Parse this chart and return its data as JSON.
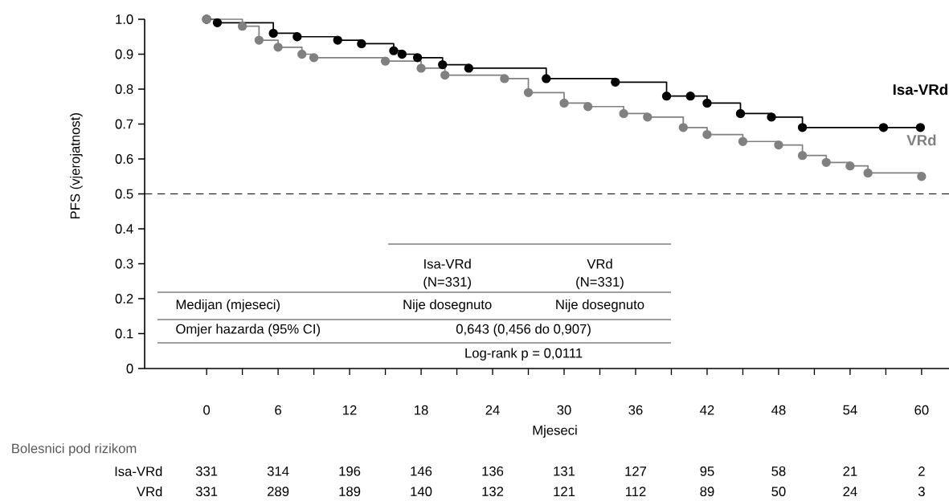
{
  "chart_data": {
    "type": "step",
    "xlabel": "Mjeseci",
    "ylabel": "PFS (vjerojatnost)",
    "xlim": [
      -5.2,
      62.3
    ],
    "ylim": [
      0,
      1.0
    ],
    "xticks": [
      0,
      {
        "value": 3,
        "label": null
      },
      6,
      {
        "value": 9,
        "label": null
      },
      12,
      {
        "value": 15,
        "label": null
      },
      18,
      {
        "value": 21,
        "label": null
      },
      24,
      {
        "value": 27,
        "label": null
      },
      30,
      {
        "value": 33,
        "label": null
      },
      36,
      {
        "value": 39,
        "label": null
      },
      42,
      {
        "value": 45,
        "label": null
      },
      48,
      {
        "value": 51,
        "label": null
      },
      54,
      {
        "value": 57,
        "label": null
      },
      60
    ],
    "yticks": [
      0,
      0.1,
      0.2,
      0.3,
      0.4,
      0.5,
      0.6,
      0.7,
      0.8,
      0.9,
      {
        "value": 1.0,
        "label": "1.0"
      }
    ],
    "marker": "circle",
    "line_style": "solid",
    "grid": false,
    "series": [
      {
        "name": "Isa-VRd",
        "color": "#000000",
        "x": [
          0,
          0.9,
          5.6,
          7.6,
          11,
          13,
          15.7,
          16.4,
          17.7,
          19.8,
          22,
          28.5,
          34.3,
          38.6,
          40.6,
          42,
          44.8,
          47.4,
          50,
          56.8,
          59.9
        ],
        "values": [
          1.0,
          0.99,
          0.96,
          0.95,
          0.94,
          0.93,
          0.91,
          0.9,
          0.89,
          0.87,
          0.86,
          0.83,
          0.82,
          0.78,
          0.78,
          0.76,
          0.73,
          0.72,
          0.69,
          0.69,
          0.69
        ]
      },
      {
        "name": "VRd",
        "color": "#808080",
        "x": [
          0,
          3,
          4.4,
          6,
          8,
          9,
          15,
          18,
          20,
          25,
          27,
          30,
          32,
          35,
          37,
          40,
          42,
          45,
          48,
          50,
          52,
          54,
          55.5,
          60
        ],
        "values": [
          1.0,
          0.98,
          0.94,
          0.92,
          0.9,
          0.89,
          0.88,
          0.86,
          0.84,
          0.83,
          0.79,
          0.76,
          0.75,
          0.73,
          0.72,
          0.69,
          0.67,
          0.65,
          0.64,
          0.61,
          0.59,
          0.58,
          0.56,
          0.55
        ]
      }
    ],
    "ref_lines": [
      {
        "axis": "y",
        "value": 0.5,
        "color": "#000000",
        "line_style": "dashed"
      }
    ],
    "annotations": [
      "Isa-VRd",
      "(N=331)",
      "VRd",
      "(N=331)",
      "Medijan (mjeseci)",
      "Nije dosegnuto",
      "Nije dosegnuto",
      "Omjer hazarda (95% CI)",
      "0,643 (0,456 do 0,907)",
      "Log-rank p = 0,0111",
      "Bolesnici pod rizikom",
      "Isa-VRd",
      "331",
      "314",
      "196",
      "146",
      "136",
      "131",
      "127",
      "95",
      "58",
      "21",
      "2",
      "VRd",
      "331",
      "289",
      "189",
      "140",
      "132",
      "121",
      "112",
      "89",
      "50",
      "24",
      "3"
    ]
  }
}
